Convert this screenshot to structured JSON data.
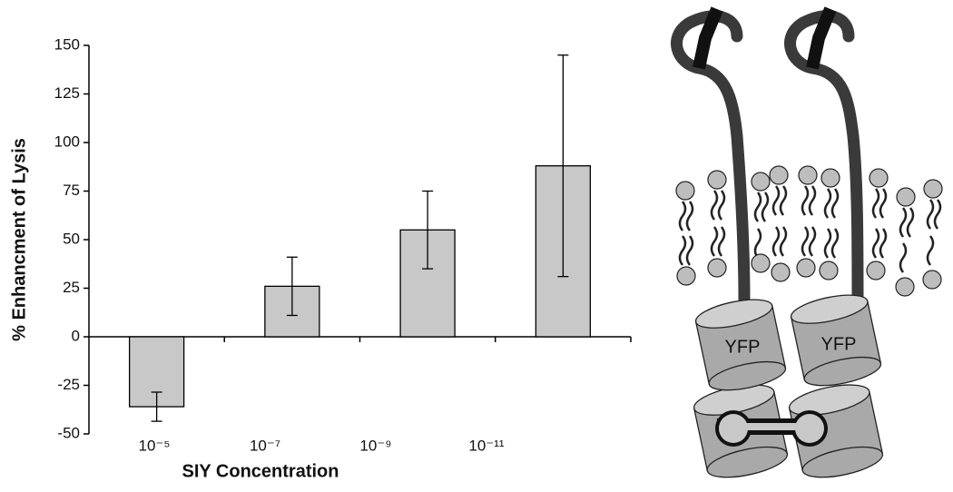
{
  "chart_data": {
    "type": "bar",
    "x_label": "SIY Concentration",
    "y_label": "% Enhancment of Lysis",
    "categories": [
      "10⁻⁵",
      "10⁻⁷",
      "10⁻⁹",
      "10⁻¹¹"
    ],
    "values": [
      -36,
      26,
      55,
      88
    ],
    "errors": [
      7.5,
      15,
      20,
      57
    ],
    "color": "#c8c8c8",
    "ylim": [
      -50,
      150
    ],
    "yticks": [
      -50,
      -25,
      0,
      25,
      50,
      75,
      100,
      125,
      150
    ],
    "grid": false
  },
  "diagram": {
    "labels": [
      "YFP",
      "YFP"
    ]
  }
}
